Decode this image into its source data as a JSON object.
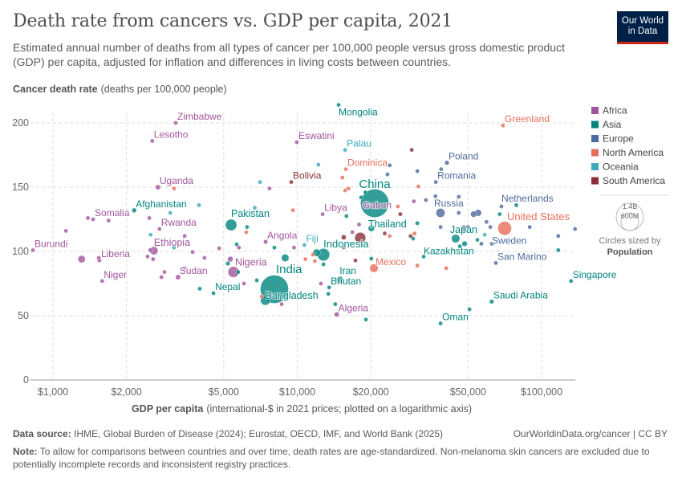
{
  "header": {
    "title": "Death rate from cancers vs. GDP per capita, 2021",
    "subtitle": "Estimated annual number of deaths from all types of cancer per 100,000 people versus gross domestic product (GDP) per capita, adjusted for inflation and differences in living costs between countries.",
    "logo_line1": "Our World",
    "logo_line2": "in Data"
  },
  "footer": {
    "source_label": "Data source:",
    "source_text": "IHME, Global Burden of Disease (2024); Eurostat, OECD, IMF, and World Bank (2025)",
    "url": "OurWorldinData.org/cancer | CC BY",
    "note_label": "Note:",
    "note_text": "To allow for comparisons between countries and over time, death rates are age-standardized. Non-melanoma skin cancers are excluded due to potentially incomplete records and inconsistent registry practices."
  },
  "chart_data": {
    "type": "scatter",
    "ylabel": "Cancer death rate",
    "ylabel_unit": "(deaths per 100,000 people)",
    "xlabel": "GDP per capita",
    "xlabel_unit": "(international-$ in 2021 prices; plotted on a logarithmic axis)",
    "x_scale": "log",
    "xlim": [
      780,
      140000
    ],
    "ylim": [
      0,
      215
    ],
    "x_ticks": [
      {
        "v": 1000,
        "label": "$1,000"
      },
      {
        "v": 2000,
        "label": "$2,000"
      },
      {
        "v": 5000,
        "label": "$5,000"
      },
      {
        "v": 10000,
        "label": "$10,000"
      },
      {
        "v": 20000,
        "label": "$20,000"
      },
      {
        "v": 50000,
        "label": "$50,000"
      },
      {
        "v": 100000,
        "label": "$100,000"
      }
    ],
    "y_ticks": [
      {
        "v": 0,
        "label": "0"
      },
      {
        "v": 50,
        "label": "50"
      },
      {
        "v": 100,
        "label": "100"
      },
      {
        "v": 150,
        "label": "150"
      },
      {
        "v": 200,
        "label": "200"
      }
    ],
    "grid": true,
    "legend_position": "right",
    "regions": [
      {
        "name": "Africa",
        "color": "#a2559c"
      },
      {
        "name": "Asia",
        "color": "#00847e"
      },
      {
        "name": "Europe",
        "color": "#4c6a9c"
      },
      {
        "name": "North America",
        "color": "#e56e5a"
      },
      {
        "name": "Oceania",
        "color": "#38aaba"
      },
      {
        "name": "South America",
        "color": "#883039"
      }
    ],
    "size_legend": {
      "title_1": "Circles sized by",
      "title_2": "Population",
      "large": "1.4B",
      "small": "600M"
    },
    "labeled_points": [
      {
        "name": "Zimbabwe",
        "gdp": 3180,
        "rate": 200,
        "region": "Africa",
        "pop": 16
      },
      {
        "name": "Lesotho",
        "gdp": 2550,
        "rate": 186,
        "region": "Africa",
        "pop": 2.3
      },
      {
        "name": "Eswatini",
        "gdp": 9960,
        "rate": 185,
        "region": "Africa",
        "pop": 1.2
      },
      {
        "name": "Mongolia",
        "gdp": 14760,
        "rate": 214,
        "region": "Asia",
        "pop": 3.3
      },
      {
        "name": "Greenland",
        "gdp": 69500,
        "rate": 198,
        "region": "North America",
        "pop": 0.06
      },
      {
        "name": "Palau",
        "gdp": 15700,
        "rate": 179,
        "region": "Oceania",
        "pop": 0.02
      },
      {
        "name": "Dominica",
        "gdp": 15800,
        "rate": 164,
        "region": "North America",
        "pop": 0.07
      },
      {
        "name": "Poland",
        "gdp": 40960,
        "rate": 169,
        "region": "Europe",
        "pop": 38
      },
      {
        "name": "Bolivia",
        "gdp": 9450,
        "rate": 154,
        "region": "South America",
        "pop": 12
      },
      {
        "name": "Uganda",
        "gdp": 2690,
        "rate": 150,
        "region": "Africa",
        "pop": 46
      },
      {
        "name": "Romania",
        "gdp": 36900,
        "rate": 154,
        "region": "Europe",
        "pop": 19
      },
      {
        "name": "China",
        "gdp": 20750,
        "rate": 137.5,
        "region": "Asia",
        "pop": 1425
      },
      {
        "name": "Gabon",
        "gdp": 18800,
        "rate": 136,
        "region": "Africa",
        "pop": 2.3
      },
      {
        "name": "Russia",
        "gdp": 38560,
        "rate": 130,
        "region": "Europe",
        "pop": 145
      },
      {
        "name": "Netherlands",
        "gdp": 68500,
        "rate": 135,
        "region": "Europe",
        "pop": 17.5
      },
      {
        "name": "United States",
        "gdp": 70600,
        "rate": 118,
        "region": "North America",
        "pop": 337
      },
      {
        "name": "Sweden",
        "gdp": 62600,
        "rate": 106,
        "region": "Europe",
        "pop": 10.4
      },
      {
        "name": "Japan",
        "gdp": 44500,
        "rate": 110,
        "region": "Asia",
        "pop": 125
      },
      {
        "name": "Thailand",
        "gdp": 20100,
        "rate": 118,
        "region": "Asia",
        "pop": 71
      },
      {
        "name": "Kazakhstan",
        "gdp": 32900,
        "rate": 96,
        "region": "Asia",
        "pop": 19
      },
      {
        "name": "San Marino",
        "gdp": 65000,
        "rate": 91,
        "region": "Europe",
        "pop": 0.03
      },
      {
        "name": "Singapore",
        "gdp": 132000,
        "rate": 77,
        "region": "Asia",
        "pop": 5.9
      },
      {
        "name": "Saudi Arabia",
        "gdp": 62500,
        "rate": 61,
        "region": "Asia",
        "pop": 36
      },
      {
        "name": "Oman",
        "gdp": 38600,
        "rate": 44,
        "region": "Asia",
        "pop": 4.5
      },
      {
        "name": "Mexico",
        "gdp": 20600,
        "rate": 87,
        "region": "North America",
        "pop": 126
      },
      {
        "name": "Iran",
        "gdp": 14900,
        "rate": 78,
        "region": "Asia",
        "pop": 88
      },
      {
        "name": "Bhutan",
        "gdp": 13500,
        "rate": 72,
        "region": "Asia",
        "pop": 0.8
      },
      {
        "name": "Algeria",
        "gdp": 14500,
        "rate": 51,
        "region": "Africa",
        "pop": 44
      },
      {
        "name": "Libya",
        "gdp": 12700,
        "rate": 129,
        "region": "Africa",
        "pop": 6.7
      },
      {
        "name": "Indonesia",
        "gdp": 12800,
        "rate": 97.5,
        "region": "Asia",
        "pop": 274
      },
      {
        "name": "Fiji",
        "gdp": 10700,
        "rate": 105,
        "region": "Oceania",
        "pop": 0.9
      },
      {
        "name": "Angola",
        "gdp": 7420,
        "rate": 107.5,
        "region": "Africa",
        "pop": 34
      },
      {
        "name": "India",
        "gdp": 8060,
        "rate": 70.6,
        "region": "Asia",
        "pop": 1414
      },
      {
        "name": "Bangladesh",
        "gdp": 7400,
        "rate": 62,
        "region": "Asia",
        "pop": 169
      },
      {
        "name": "Nigeria",
        "gdp": 5480,
        "rate": 84,
        "region": "Africa",
        "pop": 213
      },
      {
        "name": "Pakistan",
        "gdp": 5360,
        "rate": 120.6,
        "region": "Asia",
        "pop": 231
      },
      {
        "name": "Nepal",
        "gdp": 4540,
        "rate": 67.5,
        "region": "Asia",
        "pop": 30
      },
      {
        "name": "Sudan",
        "gdp": 3250,
        "rate": 80,
        "region": "Africa",
        "pop": 46
      },
      {
        "name": "Ethiopia",
        "gdp": 2590,
        "rate": 100.6,
        "region": "Africa",
        "pop": 120
      },
      {
        "name": "Rwanda",
        "gdp": 2730,
        "rate": 117.5,
        "region": "Africa",
        "pop": 13.5
      },
      {
        "name": "Afghanistan",
        "gdp": 2150,
        "rate": 132,
        "region": "Asia",
        "pop": 40
      },
      {
        "name": "Somalia",
        "gdp": 1460,
        "rate": 125,
        "region": "Africa",
        "pop": 17
      },
      {
        "name": "Liberia",
        "gdp": 1550,
        "rate": 93,
        "region": "Africa",
        "pop": 5.2
      },
      {
        "name": "Niger",
        "gdp": 1590,
        "rate": 77,
        "region": "Africa",
        "pop": 25
      },
      {
        "name": "Burundi",
        "gdp": 828,
        "rate": 101,
        "region": "Africa",
        "pop": 12.5
      }
    ],
    "other_points": [
      [
        1310,
        94,
        "Africa",
        95
      ],
      [
        1130,
        116,
        "Africa",
        5
      ],
      [
        1390,
        126,
        "Africa",
        5
      ],
      [
        1690,
        124,
        "Africa",
        5
      ],
      [
        1540,
        95,
        "Africa",
        5
      ],
      [
        2480,
        126,
        "Africa",
        5
      ],
      [
        3460,
        112,
        "Africa",
        28
      ],
      [
        2500,
        101,
        "Africa",
        5
      ],
      [
        2440,
        96,
        "Africa",
        5
      ],
      [
        2570,
        94,
        "Africa",
        5
      ],
      [
        3730,
        99.5,
        "Africa",
        5
      ],
      [
        4170,
        95,
        "Africa",
        5
      ],
      [
        2860,
        84,
        "Africa",
        5
      ],
      [
        2780,
        80,
        "Africa",
        5
      ],
      [
        3460,
        87,
        "Africa",
        5
      ],
      [
        4790,
        102.5,
        "Africa",
        12
      ],
      [
        5320,
        94,
        "Africa",
        55
      ],
      [
        5770,
        103,
        "Africa",
        5
      ],
      [
        6050,
        75,
        "Africa",
        12
      ],
      [
        9700,
        103,
        "Africa",
        5
      ],
      [
        7700,
        149,
        "Africa",
        5
      ],
      [
        8630,
        59,
        "Africa",
        12
      ],
      [
        12500,
        75,
        "Africa",
        5
      ],
      [
        15500,
        103,
        "Africa",
        28
      ],
      [
        17900,
        121,
        "Africa",
        5
      ],
      [
        16800,
        115,
        "Africa",
        5
      ],
      [
        30000,
        139,
        "Africa",
        5
      ],
      [
        3960,
        136,
        "Oceania",
        5
      ],
      [
        3020,
        130,
        "Oceania",
        5
      ],
      [
        2510,
        113,
        "Oceania",
        5
      ],
      [
        3130,
        103,
        "Oceania",
        5
      ],
      [
        6700,
        134,
        "Oceania",
        5
      ],
      [
        7040,
        154,
        "Oceania",
        5
      ],
      [
        12200,
        167.5,
        "Oceania",
        5
      ],
      [
        58500,
        113,
        "Oceania",
        5
      ],
      [
        3990,
        71,
        "Asia",
        5
      ],
      [
        5200,
        90.6,
        "Asia",
        35
      ],
      [
        5650,
        105.6,
        "Asia",
        5
      ],
      [
        5730,
        84,
        "Asia",
        5
      ],
      [
        6230,
        119,
        "Asia",
        5
      ],
      [
        6830,
        77.5,
        "Asia",
        5
      ],
      [
        8060,
        103,
        "Asia",
        5
      ],
      [
        8920,
        95,
        "Asia",
        100
      ],
      [
        12000,
        99,
        "Asia",
        98
      ],
      [
        12800,
        90,
        "Asia",
        5
      ],
      [
        13400,
        67,
        "Asia",
        5
      ],
      [
        14300,
        59,
        "Asia",
        5
      ],
      [
        18250,
        142,
        "Asia",
        5
      ],
      [
        19000,
        146,
        "Asia",
        5
      ],
      [
        15900,
        127.5,
        "Asia",
        5
      ],
      [
        20100,
        94.4,
        "Asia",
        5
      ],
      [
        19100,
        47,
        "Asia",
        5
      ],
      [
        29800,
        110,
        "Asia",
        8
      ],
      [
        50700,
        55,
        "Asia",
        5
      ],
      [
        48400,
        106,
        "Asia",
        51
      ],
      [
        46300,
        104,
        "Asia",
        5
      ],
      [
        54600,
        109,
        "Asia",
        5
      ],
      [
        67400,
        129,
        "Asia",
        5
      ],
      [
        78800,
        136,
        "Asia",
        5
      ],
      [
        117000,
        101,
        "Asia",
        5
      ],
      [
        31000,
        122,
        "Asia",
        33
      ],
      [
        3130,
        149,
        "North America",
        5
      ],
      [
        6180,
        115,
        "North America",
        5
      ],
      [
        9600,
        132,
        "North America",
        5
      ],
      [
        7160,
        65,
        "North America",
        5
      ],
      [
        10800,
        94,
        "North America",
        5
      ],
      [
        11800,
        92.5,
        "North America",
        5
      ],
      [
        11600,
        97.5,
        "North America",
        5
      ],
      [
        15300,
        157.5,
        "North America",
        5
      ],
      [
        15700,
        147.5,
        "North America",
        5
      ],
      [
        16200,
        149,
        "North America",
        5
      ],
      [
        31300,
        150.6,
        "North America",
        5
      ],
      [
        25800,
        135,
        "North America",
        5
      ],
      [
        23900,
        112,
        "North America",
        5
      ],
      [
        30200,
        114,
        "North America",
        5
      ],
      [
        31000,
        89,
        "North America",
        5
      ],
      [
        40700,
        87,
        "North America",
        5
      ],
      [
        15500,
        111,
        "South America",
        45
      ],
      [
        29400,
        179,
        "South America",
        5
      ],
      [
        26400,
        129,
        "South America",
        33
      ],
      [
        18100,
        110.6,
        "South America",
        214
      ],
      [
        22800,
        114,
        "South America",
        5
      ],
      [
        29100,
        112,
        "South America",
        5
      ],
      [
        17300,
        93,
        "South America",
        28
      ],
      [
        23900,
        167,
        "Europe",
        5
      ],
      [
        23400,
        160,
        "Europe",
        5
      ],
      [
        31000,
        162.5,
        "Europe",
        5
      ],
      [
        38800,
        164,
        "Europe",
        5
      ],
      [
        36800,
        143,
        "Europe",
        5
      ],
      [
        33600,
        140,
        "Europe",
        5
      ],
      [
        38600,
        119,
        "Europe",
        5
      ],
      [
        45800,
        142.5,
        "Europe",
        5
      ],
      [
        45800,
        130,
        "Europe",
        5
      ],
      [
        52700,
        129,
        "Europe",
        67
      ],
      [
        50000,
        119,
        "Europe",
        5
      ],
      [
        56700,
        106,
        "Europe",
        5
      ],
      [
        59500,
        123,
        "Europe",
        5
      ],
      [
        61700,
        119,
        "Europe",
        5
      ],
      [
        89400,
        119,
        "Europe",
        5
      ],
      [
        117000,
        112,
        "Europe",
        5
      ],
      [
        137000,
        117.5,
        "Europe",
        5
      ],
      [
        55000,
        130,
        "Europe",
        83
      ],
      [
        48000,
        118,
        "Europe",
        68
      ]
    ]
  }
}
